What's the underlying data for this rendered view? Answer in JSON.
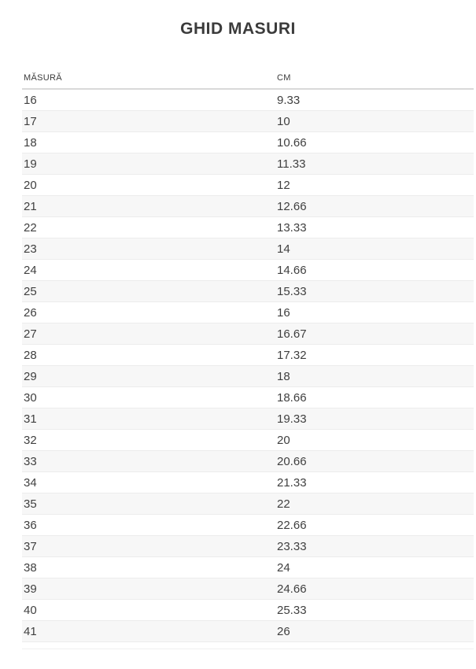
{
  "page": {
    "title": "GHID MASURI"
  },
  "table": {
    "columns": [
      "MĂSURĂ",
      "CM"
    ],
    "rows": [
      {
        "masura": "16",
        "cm": "9.33"
      },
      {
        "masura": "17",
        "cm": "10"
      },
      {
        "masura": "18",
        "cm": "10.66"
      },
      {
        "masura": "19",
        "cm": "11.33"
      },
      {
        "masura": "20",
        "cm": "12"
      },
      {
        "masura": "21",
        "cm": "12.66"
      },
      {
        "masura": "22",
        "cm": "13.33"
      },
      {
        "masura": "23",
        "cm": "14"
      },
      {
        "masura": "24",
        "cm": "14.66"
      },
      {
        "masura": "25",
        "cm": "15.33"
      },
      {
        "masura": "26",
        "cm": "16"
      },
      {
        "masura": "27",
        "cm": "16.67"
      },
      {
        "masura": "28",
        "cm": "17.32"
      },
      {
        "masura": "29",
        "cm": "18"
      },
      {
        "masura": "30",
        "cm": "18.66"
      },
      {
        "masura": "31",
        "cm": "19.33"
      },
      {
        "masura": "32",
        "cm": "20"
      },
      {
        "masura": "33",
        "cm": "20.66"
      },
      {
        "masura": "34",
        "cm": "21.33"
      },
      {
        "masura": "35",
        "cm": "22"
      },
      {
        "masura": "36",
        "cm": "22.66"
      },
      {
        "masura": "37",
        "cm": "23.33"
      },
      {
        "masura": "38",
        "cm": "24"
      },
      {
        "masura": "39",
        "cm": "24.66"
      },
      {
        "masura": "40",
        "cm": "25.33"
      },
      {
        "masura": "41",
        "cm": "26"
      }
    ]
  },
  "colors": {
    "title_text": "#3b3b3b",
    "cell_text": "#3f3f3f",
    "stripe_background": "#f7f7f7",
    "row_border": "#ececec",
    "header_border": "#d9d9d9"
  }
}
